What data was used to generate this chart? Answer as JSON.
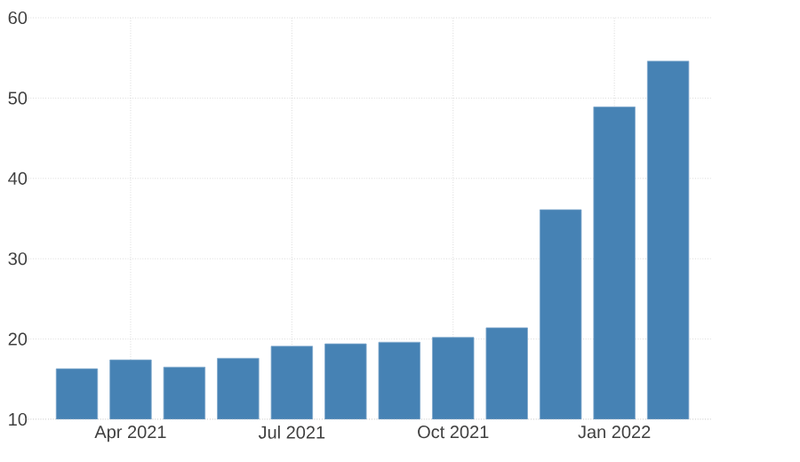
{
  "chart_data": {
    "type": "bar",
    "categories": [
      null,
      "Apr 2021",
      null,
      null,
      "Jul 2021",
      null,
      null,
      "Oct 2021",
      null,
      null,
      "Jan 2022",
      null
    ],
    "values": [
      16.3,
      17.4,
      16.5,
      17.6,
      19.1,
      19.4,
      19.6,
      20.2,
      21.4,
      36.1,
      48.9,
      54.6
    ],
    "color": "#4682b4",
    "ylim": [
      10,
      60
    ],
    "yticks": [
      10,
      20,
      30,
      40,
      50,
      60
    ],
    "grid": true
  }
}
